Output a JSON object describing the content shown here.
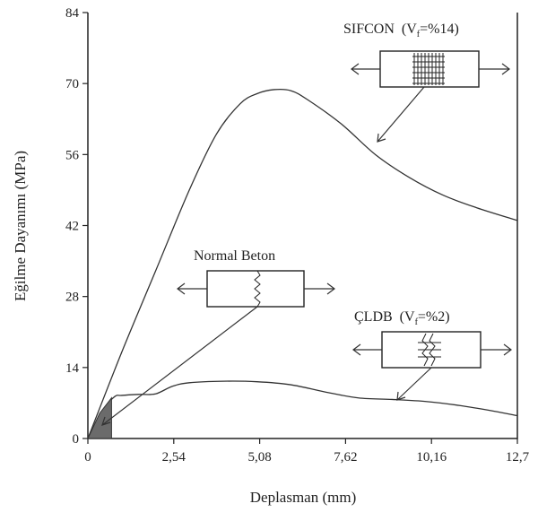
{
  "chart_data": {
    "type": "line",
    "title": "",
    "xlabel": "Deplasman (mm)",
    "ylabel": "Eğilme Dayanımı (MPa)",
    "xlim": [
      0,
      12.7
    ],
    "ylim": [
      0,
      84
    ],
    "xticks": [
      0,
      2.54,
      5.08,
      7.62,
      10.16,
      12.7
    ],
    "xtick_labels": [
      "0",
      "2,54",
      "5,08",
      "7,62",
      "10,16",
      "12,7"
    ],
    "yticks": [
      0,
      14,
      28,
      42,
      56,
      70,
      84
    ],
    "ytick_labels": [
      "0",
      "14",
      "28",
      "42",
      "56",
      "70",
      "84"
    ],
    "grid": false,
    "series": [
      {
        "name": "SIFCON (Vf=%14)",
        "x": [
          0,
          1.0,
          2.0,
          3.0,
          3.8,
          4.5,
          5.0,
          5.5,
          6.0,
          6.5,
          7.5,
          8.5,
          9.5,
          10.5,
          11.5,
          12.7
        ],
        "y": [
          0,
          17,
          33,
          49,
          60,
          66,
          68,
          68.8,
          68.6,
          66.8,
          62,
          56,
          51.5,
          48,
          45.5,
          43
        ]
      },
      {
        "name": "ÇLDB (Vf=%2)",
        "x": [
          0,
          0.5,
          0.8,
          1.0,
          1.5,
          2.0,
          2.5,
          3.0,
          4.0,
          5.0,
          6.0,
          7.0,
          8.0,
          9.0,
          10.0,
          11.0,
          12.0,
          12.7
        ],
        "y": [
          0,
          6,
          8.3,
          8.5,
          8.7,
          8.8,
          10.3,
          11,
          11.3,
          11.2,
          10.6,
          9.2,
          8.0,
          7.7,
          7.3,
          6.5,
          5.4,
          4.5
        ]
      },
      {
        "name": "Normal Beton",
        "x": [
          0,
          0.35,
          0.7,
          0.7,
          0
        ],
        "y": [
          0,
          5,
          8,
          0,
          0
        ]
      }
    ],
    "annotations": [
      {
        "label": "SIFCON",
        "vf_symbol": "V",
        "vf_sub": "f",
        "vf_value": "=%14",
        "prefix": "(",
        "suffix": ")"
      },
      {
        "label": "Normal Beton"
      },
      {
        "label": "ÇLDB",
        "vf_symbol": "V",
        "vf_sub": "f",
        "vf_value": "=%2",
        "prefix": "(",
        "suffix": ")"
      }
    ]
  }
}
